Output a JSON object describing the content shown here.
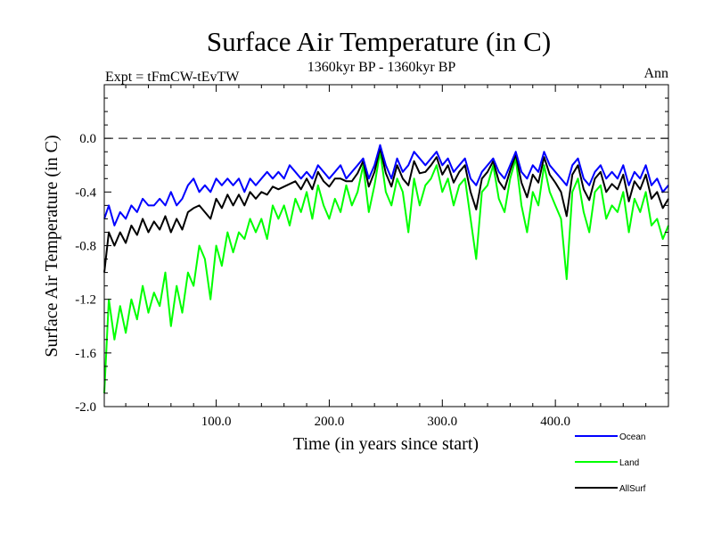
{
  "chart_data": {
    "type": "line",
    "title": "Surface Air Temperature (in C)",
    "subtitle_left": "Expt = tFmCW-tEvTW",
    "subtitle_center": "1360kyr BP - 1360kyr BP",
    "subtitle_right": "Ann",
    "xlabel": "Time (in years since start)",
    "ylabel": "Surface Air Temperature (in C)",
    "xlim": [
      1,
      500
    ],
    "ylim": [
      -2.0,
      0.4
    ],
    "x_ticks": [
      100,
      200,
      300,
      400
    ],
    "x_tick_labels": [
      "100.0",
      "200.0",
      "300.0",
      "400.0"
    ],
    "y_ticks": [
      -2.0,
      -1.6,
      -1.2,
      -0.8,
      -0.4,
      0.0
    ],
    "y_tick_labels": [
      "-2.0",
      "-1.6",
      "-1.2",
      "-0.8",
      "-0.4",
      "0.0"
    ],
    "reference_line": 0.0,
    "grid": false,
    "legend_position": "bottom-right",
    "series": [
      {
        "name": "Ocean",
        "color": "#0000ff",
        "x": [
          1,
          5,
          10,
          15,
          20,
          25,
          30,
          35,
          40,
          45,
          50,
          55,
          60,
          65,
          70,
          75,
          80,
          85,
          90,
          95,
          100,
          105,
          110,
          115,
          120,
          125,
          130,
          135,
          140,
          145,
          150,
          155,
          160,
          165,
          170,
          175,
          180,
          185,
          190,
          195,
          200,
          205,
          210,
          215,
          220,
          225,
          230,
          235,
          240,
          245,
          250,
          255,
          260,
          265,
          270,
          275,
          280,
          285,
          290,
          295,
          300,
          305,
          310,
          315,
          320,
          325,
          330,
          335,
          340,
          345,
          350,
          355,
          360,
          365,
          370,
          375,
          380,
          385,
          390,
          395,
          400,
          405,
          410,
          415,
          420,
          425,
          430,
          435,
          440,
          445,
          450,
          455,
          460,
          465,
          470,
          475,
          480,
          485,
          490,
          495,
          500
        ],
        "values": [
          -0.6,
          -0.5,
          -0.65,
          -0.55,
          -0.6,
          -0.5,
          -0.55,
          -0.45,
          -0.5,
          -0.5,
          -0.45,
          -0.5,
          -0.4,
          -0.5,
          -0.45,
          -0.35,
          -0.3,
          -0.4,
          -0.35,
          -0.4,
          -0.3,
          -0.35,
          -0.3,
          -0.35,
          -0.3,
          -0.4,
          -0.3,
          -0.35,
          -0.3,
          -0.25,
          -0.3,
          -0.25,
          -0.3,
          -0.2,
          -0.25,
          -0.3,
          -0.25,
          -0.3,
          -0.2,
          -0.25,
          -0.3,
          -0.25,
          -0.2,
          -0.3,
          -0.25,
          -0.2,
          -0.15,
          -0.3,
          -0.2,
          -0.05,
          -0.2,
          -0.3,
          -0.15,
          -0.25,
          -0.2,
          -0.1,
          -0.15,
          -0.2,
          -0.15,
          -0.1,
          -0.2,
          -0.15,
          -0.25,
          -0.2,
          -0.15,
          -0.3,
          -0.35,
          -0.25,
          -0.2,
          -0.15,
          -0.25,
          -0.3,
          -0.2,
          -0.1,
          -0.25,
          -0.3,
          -0.2,
          -0.25,
          -0.1,
          -0.2,
          -0.25,
          -0.3,
          -0.35,
          -0.2,
          -0.15,
          -0.3,
          -0.35,
          -0.25,
          -0.2,
          -0.3,
          -0.25,
          -0.3,
          -0.2,
          -0.35,
          -0.25,
          -0.3,
          -0.2,
          -0.35,
          -0.3,
          -0.4,
          -0.35
        ]
      },
      {
        "name": "Land",
        "color": "#00ff00",
        "x": [
          1,
          5,
          10,
          15,
          20,
          25,
          30,
          35,
          40,
          45,
          50,
          55,
          60,
          65,
          70,
          75,
          80,
          85,
          90,
          95,
          100,
          105,
          110,
          115,
          120,
          125,
          130,
          135,
          140,
          145,
          150,
          155,
          160,
          165,
          170,
          175,
          180,
          185,
          190,
          195,
          200,
          205,
          210,
          215,
          220,
          225,
          230,
          235,
          240,
          245,
          250,
          255,
          260,
          265,
          270,
          275,
          280,
          285,
          290,
          295,
          300,
          305,
          310,
          315,
          320,
          325,
          330,
          335,
          340,
          345,
          350,
          355,
          360,
          365,
          370,
          375,
          380,
          385,
          390,
          395,
          400,
          405,
          410,
          415,
          420,
          425,
          430,
          435,
          440,
          445,
          450,
          455,
          460,
          465,
          470,
          475,
          480,
          485,
          490,
          495,
          500
        ],
        "values": [
          -1.9,
          -1.2,
          -1.5,
          -1.25,
          -1.45,
          -1.2,
          -1.35,
          -1.1,
          -1.3,
          -1.15,
          -1.25,
          -1.0,
          -1.4,
          -1.1,
          -1.3,
          -1.0,
          -1.1,
          -0.8,
          -0.9,
          -1.2,
          -0.8,
          -0.95,
          -0.7,
          -0.85,
          -0.7,
          -0.75,
          -0.6,
          -0.7,
          -0.6,
          -0.75,
          -0.5,
          -0.6,
          -0.5,
          -0.65,
          -0.45,
          -0.55,
          -0.4,
          -0.6,
          -0.35,
          -0.5,
          -0.6,
          -0.45,
          -0.55,
          -0.35,
          -0.5,
          -0.4,
          -0.2,
          -0.55,
          -0.35,
          -0.1,
          -0.4,
          -0.5,
          -0.3,
          -0.4,
          -0.7,
          -0.3,
          -0.5,
          -0.35,
          -0.3,
          -0.2,
          -0.4,
          -0.3,
          -0.5,
          -0.35,
          -0.3,
          -0.6,
          -0.9,
          -0.4,
          -0.35,
          -0.2,
          -0.45,
          -0.55,
          -0.3,
          -0.15,
          -0.5,
          -0.7,
          -0.4,
          -0.5,
          -0.2,
          -0.4,
          -0.5,
          -0.6,
          -1.05,
          -0.4,
          -0.3,
          -0.55,
          -0.7,
          -0.4,
          -0.35,
          -0.6,
          -0.5,
          -0.55,
          -0.4,
          -0.7,
          -0.45,
          -0.55,
          -0.4,
          -0.65,
          -0.6,
          -0.75,
          -0.65
        ]
      },
      {
        "name": "AllSurf",
        "color": "#000000",
        "x": [
          1,
          5,
          10,
          15,
          20,
          25,
          30,
          35,
          40,
          45,
          50,
          55,
          60,
          65,
          70,
          75,
          80,
          85,
          90,
          95,
          100,
          105,
          110,
          115,
          120,
          125,
          130,
          135,
          140,
          145,
          150,
          155,
          160,
          165,
          170,
          175,
          180,
          185,
          190,
          195,
          200,
          205,
          210,
          215,
          220,
          225,
          230,
          235,
          240,
          245,
          250,
          255,
          260,
          265,
          270,
          275,
          280,
          285,
          290,
          295,
          300,
          305,
          310,
          315,
          320,
          325,
          330,
          335,
          340,
          345,
          350,
          355,
          360,
          365,
          370,
          375,
          380,
          385,
          390,
          395,
          400,
          405,
          410,
          415,
          420,
          425,
          430,
          435,
          440,
          445,
          450,
          455,
          460,
          465,
          470,
          475,
          480,
          485,
          490,
          495,
          500
        ],
        "values": [
          -1.0,
          -0.7,
          -0.8,
          -0.7,
          -0.78,
          -0.65,
          -0.72,
          -0.6,
          -0.7,
          -0.62,
          -0.68,
          -0.58,
          -0.7,
          -0.6,
          -0.68,
          -0.55,
          -0.52,
          -0.5,
          -0.55,
          -0.6,
          -0.45,
          -0.52,
          -0.42,
          -0.5,
          -0.42,
          -0.5,
          -0.4,
          -0.45,
          -0.4,
          -0.42,
          -0.36,
          -0.38,
          -0.36,
          -0.34,
          -0.32,
          -0.38,
          -0.3,
          -0.38,
          -0.25,
          -0.32,
          -0.36,
          -0.3,
          -0.3,
          -0.32,
          -0.32,
          -0.26,
          -0.17,
          -0.36,
          -0.25,
          -0.07,
          -0.26,
          -0.36,
          -0.2,
          -0.3,
          -0.35,
          -0.17,
          -0.26,
          -0.25,
          -0.2,
          -0.14,
          -0.27,
          -0.2,
          -0.33,
          -0.25,
          -0.2,
          -0.4,
          -0.53,
          -0.3,
          -0.25,
          -0.17,
          -0.32,
          -0.38,
          -0.24,
          -0.12,
          -0.33,
          -0.44,
          -0.27,
          -0.33,
          -0.14,
          -0.27,
          -0.33,
          -0.4,
          -0.58,
          -0.27,
          -0.2,
          -0.38,
          -0.46,
          -0.3,
          -0.25,
          -0.4,
          -0.34,
          -0.38,
          -0.27,
          -0.47,
          -0.32,
          -0.38,
          -0.27,
          -0.45,
          -0.4,
          -0.52,
          -0.45
        ]
      }
    ]
  }
}
